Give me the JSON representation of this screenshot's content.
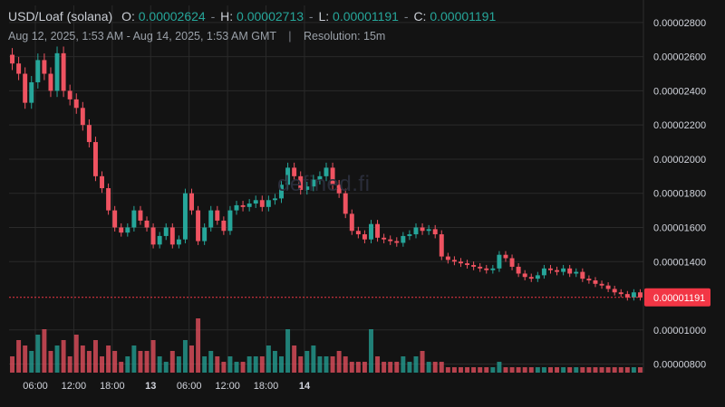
{
  "header": {
    "symbol": "USD/Loaf (solana)",
    "open_label": "O:",
    "open_value": "0.00002624",
    "high_label": "H:",
    "high_value": "0.00002713",
    "low_label": "L:",
    "low_value": "0.00001191",
    "close_label": "C:",
    "close_value": "0.00001191",
    "date_range": "Aug 12, 2025, 1:53 AM - Aug 14, 2025, 1:53 AM GMT",
    "separator": "|",
    "resolution": "Resolution: 15m"
  },
  "watermark": "defined.fi",
  "colors": {
    "up": "#26a69a",
    "down": "#ef5361",
    "background": "#131313",
    "grid": "#2a2a2a",
    "last_price_bg": "#f23645"
  },
  "chart_data": {
    "type": "candlestick",
    "price_ticks": [
      "0.00002800",
      "0.00002600",
      "0.00002400",
      "0.00002200",
      "0.00002000",
      "0.00001800",
      "0.00001600",
      "0.00001400",
      "0.00001191",
      "0.00001000",
      "0.00000800"
    ],
    "price_tick_values": [
      2.8e-05,
      2.6e-05,
      2.4e-05,
      2.2e-05,
      2e-05,
      1.8e-05,
      1.6e-05,
      1.4e-05,
      1.191e-05,
      1e-05,
      8e-06
    ],
    "time_ticks": [
      {
        "label": "06:00",
        "bold": false,
        "t": 4.1
      },
      {
        "label": "12:00",
        "bold": false,
        "t": 10.1
      },
      {
        "label": "18:00",
        "bold": false,
        "t": 16.1
      },
      {
        "label": "13",
        "bold": true,
        "t": 22.1
      },
      {
        "label": "06:00",
        "bold": false,
        "t": 28.1
      },
      {
        "label": "12:00",
        "bold": false,
        "t": 34.1
      },
      {
        "label": "18:00",
        "bold": false,
        "t": 40.1
      },
      {
        "label": "14",
        "bold": true,
        "t": 46.1
      }
    ],
    "ylim": [
      7.5e-06,
      2.9e-05
    ],
    "last_price": 1.191e-05,
    "last_price_label": "0.00001191",
    "series": {
      "close": [
        2.56e-05,
        2.5e-05,
        2.33e-05,
        2.45e-05,
        2.58e-05,
        2.5e-05,
        2.4e-05,
        2.62e-05,
        2.4e-05,
        2.35e-05,
        2.3e-05,
        2.2e-05,
        2.1e-05,
        1.9e-05,
        1.83e-05,
        1.7e-05,
        1.6e-05,
        1.57e-05,
        1.6e-05,
        1.7e-05,
        1.64e-05,
        1.6e-05,
        1.5e-05,
        1.55e-05,
        1.6e-05,
        1.5e-05,
        1.53e-05,
        1.8e-05,
        1.7e-05,
        1.52e-05,
        1.6e-05,
        1.7e-05,
        1.64e-05,
        1.58e-05,
        1.7e-05,
        1.73e-05,
        1.72e-05,
        1.74e-05,
        1.76e-05,
        1.72e-05,
        1.76e-05,
        1.77e-05,
        1.85e-05,
        1.95e-05,
        1.9e-05,
        1.82e-05,
        1.84e-05,
        1.88e-05,
        1.9e-05,
        1.95e-05,
        1.85e-05,
        1.8e-05,
        1.68e-05,
        1.58e-05,
        1.56e-05,
        1.53e-05,
        1.62e-05,
        1.54e-05,
        1.53e-05,
        1.52e-05,
        1.51e-05,
        1.55e-05,
        1.56e-05,
        1.6e-05,
        1.58e-05,
        1.59e-05,
        1.56e-05,
        1.43e-05,
        1.41e-05,
        1.4e-05,
        1.39e-05,
        1.38e-05,
        1.37e-05,
        1.36e-05,
        1.35e-05,
        1.36e-05,
        1.44e-05,
        1.42e-05,
        1.37e-05,
        1.33e-05,
        1.31e-05,
        1.3e-05,
        1.32e-05,
        1.36e-05,
        1.35e-05,
        1.34e-05,
        1.36e-05,
        1.33e-05,
        1.34e-05,
        1.3e-05,
        1.29e-05,
        1.27e-05,
        1.26e-05,
        1.24e-05,
        1.22e-05,
        1.21e-05,
        1.19e-05,
        1.22e-05,
        1.19e-05
      ],
      "volume": [
        0.3,
        0.6,
        0.5,
        0.4,
        0.7,
        0.8,
        0.4,
        0.5,
        0.6,
        0.3,
        0.7,
        0.5,
        0.4,
        0.6,
        0.3,
        0.5,
        0.4,
        0.2,
        0.3,
        0.5,
        0.4,
        0.4,
        0.6,
        0.3,
        0.2,
        0.4,
        0.3,
        0.6,
        0.5,
        1,
        0.3,
        0.4,
        0.3,
        0.2,
        0.3,
        0.2,
        0.2,
        0.3,
        0.3,
        0.3,
        0.5,
        0.4,
        0.3,
        0.8,
        0.5,
        0.3,
        0.4,
        0.5,
        0.3,
        0.3,
        0.3,
        0.4,
        0.3,
        0.2,
        0.2,
        0.2,
        0.8,
        0.3,
        0.2,
        0.2,
        0.2,
        0.3,
        0.2,
        0.3,
        0.4,
        0.2,
        0.2,
        0.2,
        0.1,
        0.1,
        0.1,
        0.1,
        0.1,
        0.1,
        0.1,
        0.1,
        0.2,
        0.1,
        0.1,
        0.1,
        0.1,
        0.1,
        0.1,
        0.1,
        0.1,
        0.1,
        0.1,
        0.1,
        0.1,
        0.1,
        0.1,
        0.1,
        0.1,
        0.1,
        0.1,
        0.1,
        0.1,
        0.1,
        0.1
      ]
    }
  }
}
